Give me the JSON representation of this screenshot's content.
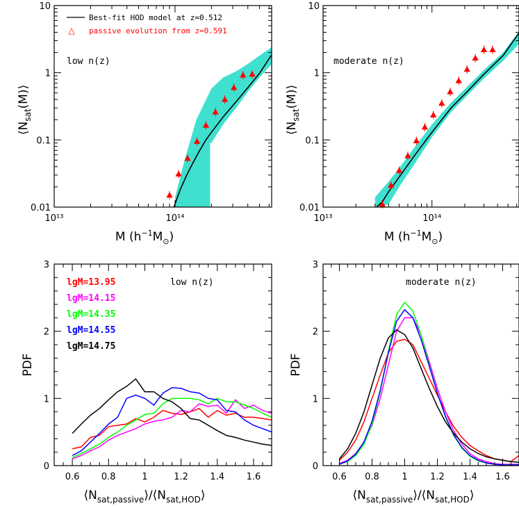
{
  "chart_data": [
    {
      "id": "top-left",
      "type": "line",
      "xscale": "log",
      "yscale": "log",
      "xlim": [
        10000000000000.0,
        630000000000000.0
      ],
      "ylim": [
        0.01,
        10
      ],
      "xlabel": "M (h⁻¹M☉)",
      "ylabel": "⟨Nsat(M)⟩",
      "x_ticklabels": [
        "10¹³",
        "10¹⁴"
      ],
      "y_ticklabels": [
        "0.01",
        "0.1",
        "1",
        "10"
      ],
      "annotation": "low n(z)",
      "legend": {
        "line_label": "Best-fit HOD model at z=0.512",
        "marker_label": "passive evolution from z=0.591",
        "line_color": "#000000",
        "marker_color": "#ff0000"
      },
      "band_color": "#40e0d0",
      "band": {
        "x": [
          100000000000000.0,
          120000000000000.0,
          150000000000000.0,
          200000000000000.0,
          250000000000000.0,
          320000000000000.0,
          400000000000000.0,
          500000000000000.0,
          630000000000000.0
        ],
        "lower": [
          0.0095,
          0.018,
          0.036,
          0.09,
          0.17,
          0.3,
          0.52,
          0.85,
          1.35
        ],
        "upper": [
          0.014,
          0.05,
          0.2,
          0.58,
          0.85,
          1.05,
          1.35,
          1.8,
          2.4
        ]
      },
      "band_step_x": [
        195000000000000.0,
        200000000000000.0
      ],
      "model": {
        "x": [
          98000000000000.0,
          110000000000000.0,
          125000000000000.0,
          140000000000000.0,
          160000000000000.0,
          180000000000000.0,
          200000000000000.0,
          250000000000000.0,
          320000000000000.0,
          400000000000000.0,
          500000000000000.0,
          630000000000000.0
        ],
        "y": [
          0.01,
          0.018,
          0.03,
          0.045,
          0.07,
          0.1,
          0.13,
          0.22,
          0.37,
          0.6,
          0.98,
          1.85
        ]
      },
      "points": {
        "x": [
          90000000000000.0,
          107000000000000.0,
          127000000000000.0,
          152000000000000.0,
          180000000000000.0,
          216000000000000.0,
          258000000000000.0,
          307000000000000.0,
          365000000000000.0,
          435000000000000.0
        ],
        "y": [
          0.015,
          0.031,
          0.053,
          0.095,
          0.165,
          0.26,
          0.4,
          0.6,
          0.92,
          0.95
        ]
      }
    },
    {
      "id": "top-right",
      "type": "line",
      "xscale": "log",
      "yscale": "log",
      "xlim": [
        10000000000000.0,
        630000000000000.0
      ],
      "ylim": [
        0.01,
        10
      ],
      "xlabel": "M (h⁻¹M☉)",
      "ylabel": "⟨Nsat(M)⟩",
      "x_ticklabels": [
        "10¹³",
        "10¹⁴"
      ],
      "y_ticklabels": [
        "0.01",
        "0.1",
        "1",
        "10"
      ],
      "annotation": "moderate n(z)",
      "band_color": "#40e0d0",
      "band": {
        "x": [
          30000000000000.0,
          40000000000000.0,
          50000000000000.0,
          70000000000000.0,
          100000000000000.0,
          150000000000000.0,
          200000000000000.0,
          300000000000000.0,
          450000000000000.0,
          630000000000000.0
        ],
        "lower": [
          0.0085,
          0.011,
          0.02,
          0.045,
          0.11,
          0.26,
          0.42,
          0.82,
          1.5,
          2.7
        ],
        "upper": [
          0.014,
          0.024,
          0.038,
          0.08,
          0.17,
          0.36,
          0.57,
          1.1,
          2.0,
          4.1
        ]
      },
      "model": {
        "x": [
          31000000000000.0,
          35000000000000.0,
          40000000000000.0,
          50000000000000.0,
          70000000000000.0,
          100000000000000.0,
          150000000000000.0,
          200000000000000.0,
          300000000000000.0,
          450000000000000.0,
          630000000000000.0
        ],
        "y": [
          0.01,
          0.012,
          0.017,
          0.028,
          0.06,
          0.13,
          0.3,
          0.48,
          0.95,
          1.8,
          3.9
        ]
      },
      "points": {
        "x": [
          35000000000000.0,
          42000000000000.0,
          50000000000000.0,
          60000000000000.0,
          72000000000000.0,
          86000000000000.0,
          103000000000000.0,
          123000000000000.0,
          147000000000000.0,
          176000000000000.0,
          210000000000000.0,
          250000000000000.0,
          300000000000000.0,
          360000000000000.0
        ],
        "y": [
          0.011,
          0.021,
          0.035,
          0.058,
          0.097,
          0.155,
          0.235,
          0.35,
          0.52,
          0.76,
          1.12,
          1.65,
          2.2,
          2.2
        ]
      }
    },
    {
      "id": "bottom-left",
      "type": "line",
      "xlim": [
        0.5,
        1.7
      ],
      "ylim": [
        0,
        3
      ],
      "xlabel": "⟨Nsat,passive⟩/⟨Nsat,HOD⟩",
      "ylabel": "PDF",
      "x_ticklabels": [
        "0.6",
        "0.8",
        "1",
        "1.2",
        "1.4",
        "1.6"
      ],
      "y_ticklabels": [
        "0",
        "1",
        "2",
        "3"
      ],
      "annotation": "low n(z)",
      "x": [
        0.6,
        0.65,
        0.7,
        0.75,
        0.8,
        0.85,
        0.9,
        0.95,
        1.0,
        1.05,
        1.1,
        1.15,
        1.2,
        1.25,
        1.3,
        1.35,
        1.4,
        1.45,
        1.5,
        1.55,
        1.6,
        1.65,
        1.7
      ],
      "series": [
        {
          "name": "lgM=13.95",
          "color": "#ff0000",
          "values": [
            0.25,
            0.28,
            0.42,
            0.45,
            0.58,
            0.6,
            0.62,
            0.7,
            0.65,
            0.72,
            0.82,
            0.78,
            0.76,
            0.8,
            0.85,
            0.72,
            0.82,
            0.75,
            0.78,
            0.72,
            0.72,
            0.7,
            0.68
          ]
        },
        {
          "name": "lgM=14.15",
          "color": "#ff00ff",
          "values": [
            0.1,
            0.15,
            0.22,
            0.28,
            0.38,
            0.45,
            0.5,
            0.55,
            0.62,
            0.66,
            0.68,
            0.72,
            0.82,
            0.8,
            0.92,
            0.88,
            0.9,
            0.78,
            0.98,
            0.85,
            0.9,
            0.82,
            0.78
          ]
        },
        {
          "name": "lgM=14.35",
          "color": "#00ff00",
          "values": [
            0.12,
            0.18,
            0.25,
            0.32,
            0.42,
            0.5,
            0.6,
            0.68,
            0.76,
            0.78,
            0.92,
            1.0,
            1.0,
            1.0,
            0.98,
            0.92,
            1.0,
            0.95,
            0.95,
            0.9,
            0.85,
            0.78,
            0.72
          ]
        },
        {
          "name": "lgM=14.55",
          "color": "#0000ff",
          "values": [
            0.15,
            0.22,
            0.35,
            0.48,
            0.62,
            0.72,
            1.0,
            1.05,
            1.0,
            0.9,
            1.08,
            1.16,
            1.15,
            1.1,
            1.08,
            1.0,
            0.98,
            0.82,
            0.8,
            0.68,
            0.6,
            0.55,
            0.5
          ]
        },
        {
          "name": "lgM=14.75",
          "color": "#000000",
          "values": [
            0.48,
            0.62,
            0.75,
            0.85,
            0.98,
            1.1,
            1.18,
            1.29,
            1.1,
            1.1,
            1.0,
            0.95,
            0.85,
            0.7,
            0.68,
            0.6,
            0.52,
            0.45,
            0.42,
            0.38,
            0.35,
            0.32,
            0.3
          ]
        }
      ]
    },
    {
      "id": "bottom-right",
      "type": "line",
      "xlim": [
        0.5,
        1.7
      ],
      "ylim": [
        0,
        3
      ],
      "xlabel": "⟨Nsat,passive⟩/⟨Nsat,HOD⟩",
      "ylabel": "PDF",
      "x_ticklabels": [
        "0.6",
        "0.8",
        "1",
        "1.2",
        "1.4",
        "1.6"
      ],
      "y_ticklabels": [
        "0",
        "1",
        "2",
        "3"
      ],
      "annotation": "moderate n(z)",
      "x": [
        0.6,
        0.65,
        0.7,
        0.75,
        0.8,
        0.85,
        0.9,
        0.95,
        1.0,
        1.05,
        1.1,
        1.15,
        1.2,
        1.25,
        1.3,
        1.35,
        1.4,
        1.45,
        1.5,
        1.55,
        1.6,
        1.65,
        1.7
      ],
      "series": [
        {
          "name": "lgM=13.95",
          "color": "#ff0000",
          "values": [
            0.08,
            0.2,
            0.38,
            0.65,
            1.0,
            1.35,
            1.68,
            1.85,
            1.88,
            1.8,
            1.55,
            1.3,
            1.05,
            0.8,
            0.58,
            0.42,
            0.3,
            0.22,
            0.15,
            0.1,
            0.08,
            0.06,
            0.15
          ]
        },
        {
          "name": "lgM=14.15",
          "color": "#ff00ff",
          "values": [
            0.03,
            0.08,
            0.18,
            0.35,
            0.6,
            1.0,
            1.5,
            2.0,
            2.2,
            2.2,
            1.95,
            1.55,
            1.15,
            0.8,
            0.52,
            0.32,
            0.18,
            0.1,
            0.06,
            0.03,
            0.02,
            0.02,
            0.02
          ]
        },
        {
          "name": "lgM=14.35",
          "color": "#00ff00",
          "values": [
            0.02,
            0.06,
            0.15,
            0.32,
            0.62,
            1.1,
            1.7,
            2.25,
            2.43,
            2.3,
            1.95,
            1.5,
            1.08,
            0.72,
            0.45,
            0.26,
            0.14,
            0.07,
            0.04,
            0.02,
            0.01,
            0.01,
            0.01
          ]
        },
        {
          "name": "lgM=14.55",
          "color": "#0000ff",
          "values": [
            0.02,
            0.07,
            0.17,
            0.35,
            0.66,
            1.12,
            1.68,
            2.15,
            2.32,
            2.2,
            1.88,
            1.48,
            1.08,
            0.73,
            0.46,
            0.27,
            0.15,
            0.08,
            0.04,
            0.02,
            0.01,
            0.01,
            0.01
          ]
        },
        {
          "name": "lgM=14.75",
          "color": "#000000",
          "values": [
            0.1,
            0.25,
            0.48,
            0.8,
            1.2,
            1.6,
            1.9,
            2.02,
            1.95,
            1.75,
            1.45,
            1.15,
            0.88,
            0.65,
            0.48,
            0.35,
            0.25,
            0.18,
            0.13,
            0.1,
            0.08,
            0.06,
            0.05
          ]
        }
      ]
    }
  ]
}
